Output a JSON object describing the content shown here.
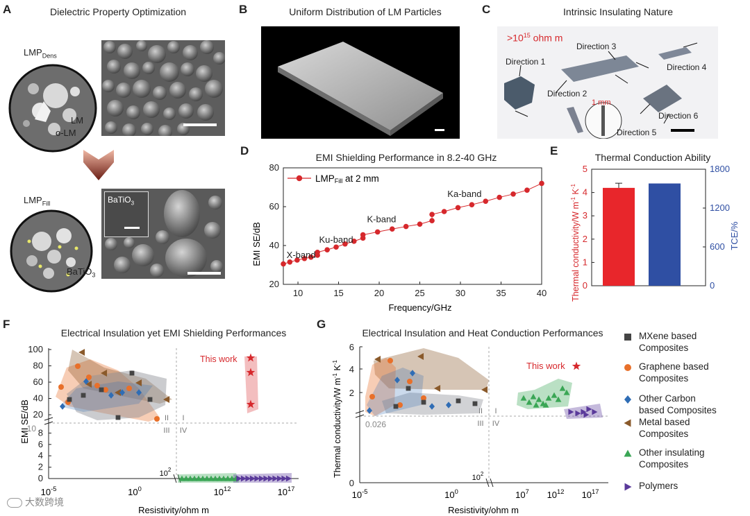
{
  "panels": {
    "A": {
      "letter": "A",
      "title": "Dielectric Property Optimization",
      "dens_label": "LMP",
      "dens_sub": "Dens",
      "lm_label": "LM",
      "olm_label": "o-LM",
      "fill_label": "LMP",
      "fill_sub": "Fill",
      "batio3_label": "BaTiO",
      "batio3_sub": "3",
      "inset_label": "BaTiO",
      "inset_sub": "3"
    },
    "B": {
      "letter": "B",
      "title": "Uniform Distribution of LM Particles"
    },
    "C": {
      "letter": "C",
      "title": "Intrinsic Insulating Nature",
      "resistivity_note": ">10",
      "resistivity_exp": "15",
      "resistivity_unit": " ohm m",
      "directions": [
        "Direction 1",
        "Direction 2",
        "Direction 3",
        "Direction 4",
        "Direction 5",
        "Direction 6"
      ],
      "scale": "1 mm"
    },
    "D": {
      "letter": "D",
      "title": "EMI Shielding Performance in 8.2-40 GHz"
    },
    "E": {
      "letter": "E",
      "title": "Thermal Conduction Ability"
    },
    "F": {
      "letter": "F",
      "title": "Electrical Insulation yet EMI Shielding Performances"
    },
    "G": {
      "letter": "G",
      "title": "Electrical Insulation and Heat Conduction Performances"
    }
  },
  "legend": {
    "items": [
      {
        "label_1": "MXene based",
        "label_2": "Composites",
        "color": "#444444",
        "marker": "square"
      },
      {
        "label_1": "Graphene based",
        "label_2": "Composites",
        "color": "#e8702a",
        "marker": "circle"
      },
      {
        "label_1": "Other Carbon",
        "label_2": "based Composites",
        "color": "#2f6db5",
        "marker": "diamond"
      },
      {
        "label_1": "Metal based",
        "label_2": "Composites",
        "color": "#8a5a2b",
        "marker": "triangle-left"
      },
      {
        "label_1": "Other insulating",
        "label_2": "Composites",
        "color": "#3aa655",
        "marker": "triangle-up"
      },
      {
        "label_1": "Polymers",
        "label_2": "",
        "color": "#5a3a9a",
        "marker": "triangle-right"
      }
    ]
  },
  "watermark": "大数跨境",
  "chart_data": [
    {
      "id": "D",
      "type": "line",
      "title": "EMI Shielding Performance in 8.2-40 GHz",
      "xlabel": "Frequency/GHz",
      "ylabel": "EMI SE/dB",
      "xlim": [
        8.2,
        40
      ],
      "ylim": [
        20,
        80
      ],
      "xticks": [
        10,
        15,
        20,
        25,
        30,
        35,
        40
      ],
      "yticks": [
        20,
        40,
        60,
        80
      ],
      "legend": "LMP",
      "legend_sub": "Fill",
      "legend_suffix": " at 2 mm",
      "band_labels": [
        {
          "text": "X-band",
          "x": 8.6,
          "y": 33.5
        },
        {
          "text": "Ku-band",
          "x": 12.6,
          "y": 41.5
        },
        {
          "text": "K-band",
          "x": 18.5,
          "y": 52
        },
        {
          "text": "Ka-band",
          "x": 28.4,
          "y": 65
        }
      ],
      "x": [
        8.2,
        9.0,
        9.9,
        10.8,
        11.6,
        12.4,
        12.4,
        13.6,
        14.7,
        15.8,
        16.9,
        18.0,
        18.0,
        19.8,
        21.6,
        23.3,
        25.0,
        26.5,
        26.5,
        28.0,
        29.7,
        31.4,
        33.1,
        34.8,
        36.5,
        38.2,
        40.0
      ],
      "y": [
        30.5,
        31.5,
        32.5,
        33.3,
        34.0,
        35.0,
        36.5,
        37.8,
        39.2,
        40.8,
        42.2,
        43.8,
        45.5,
        47.0,
        48.5,
        49.8,
        51.0,
        52.8,
        56.0,
        57.5,
        59.5,
        61.0,
        62.8,
        64.8,
        66.5,
        68.5,
        72.0
      ],
      "color": "#d6282c"
    },
    {
      "id": "E",
      "type": "bar",
      "title": "Thermal Conduction Ability",
      "ylabel_left": "Thermal conductivity/W m",
      "ylabel_left_exp": "-1",
      "ylabel_left_mid": " K",
      "ylabel_left_exp2": "-1",
      "ylabel_right": "TCE/%",
      "ylim_left": [
        0,
        5
      ],
      "ylim_right": [
        0,
        1800
      ],
      "yticks_left": [
        "0",
        "1",
        "2",
        "3",
        "4",
        "5"
      ],
      "yticks_right": [
        "0",
        "600",
        "1200",
        "1800"
      ],
      "series": [
        {
          "name": "Thermal conductivity",
          "value": 4.2,
          "error": 0.2,
          "axis": "left",
          "color": "#e8262b"
        },
        {
          "name": "TCE",
          "value": 1580,
          "axis": "right",
          "color": "#2f4fa3"
        }
      ]
    },
    {
      "id": "F",
      "type": "scatter",
      "title": "Electrical Insulation yet EMI Shielding Performances",
      "xlabel": "Resistivity/ohm m",
      "ylabel": "EMI SE/dB",
      "xticks": [
        {
          "base": "10",
          "exp": "-5"
        },
        {
          "base": "10",
          "exp": "0"
        },
        {
          "base": "10",
          "exp": "12"
        },
        {
          "base": "10",
          "exp": "17"
        }
      ],
      "yticks_upper": [
        "20",
        "40",
        "60",
        "80",
        "100"
      ],
      "yticks_lower": [
        "0",
        "2",
        "4",
        "6",
        "8"
      ],
      "break_label": "10",
      "x_break": {
        "base": "10",
        "exp": "2"
      },
      "quadrants": [
        "I",
        "II",
        "III",
        "IV"
      ],
      "this_work": "This work",
      "this_work_points": [
        {
          "log10_res": 15,
          "se": 90
        },
        {
          "log10_res": 15,
          "se": 72
        },
        {
          "log10_res": 15,
          "se": 33
        }
      ]
    },
    {
      "id": "G",
      "type": "scatter",
      "title": "Electrical Insulation and Heat Conduction Performances",
      "xlabel": "Resistivity/ohm m",
      "ylabel": "Thermal conductivity/W m",
      "ylabel_exp": "-1",
      "ylabel_mid": " K",
      "ylabel_exp2": "-1",
      "xticks": [
        {
          "base": "10",
          "exp": "-5"
        },
        {
          "base": "10",
          "exp": "0"
        },
        {
          "base": "10",
          "exp": "7"
        },
        {
          "base": "10",
          "exp": "12"
        },
        {
          "base": "10",
          "exp": "17"
        }
      ],
      "yticks": [
        "0",
        "2",
        "4",
        "6"
      ],
      "break_label": "0.026",
      "x_break": {
        "base": "10",
        "exp": "2"
      },
      "quadrants": [
        "I",
        "II",
        "III",
        "IV"
      ],
      "this_work": "This work"
    }
  ]
}
